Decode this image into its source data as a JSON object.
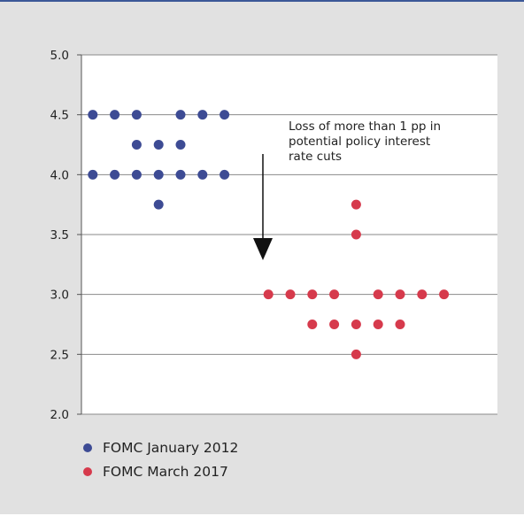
{
  "chart_data": {
    "type": "scatter",
    "title": "",
    "xlabel": "",
    "ylabel": "",
    "ylim": [
      2.0,
      5.0
    ],
    "yticks": [
      "2.0",
      "2.5",
      "3.0",
      "3.5",
      "4.0",
      "4.5",
      "5.0"
    ],
    "grid": true,
    "legend_placement": "bottom-left",
    "annotation": "Loss of more than 1 pp in potential policy interest rate cuts",
    "series": [
      {
        "name": "FOMC January 2012",
        "color": "#3d4b94",
        "points": [
          {
            "x": 1,
            "y": 4.5
          },
          {
            "x": 2,
            "y": 4.5
          },
          {
            "x": 3,
            "y": 4.5
          },
          {
            "x": 5,
            "y": 4.5
          },
          {
            "x": 6,
            "y": 4.5
          },
          {
            "x": 7,
            "y": 4.5
          },
          {
            "x": 3,
            "y": 4.25
          },
          {
            "x": 4,
            "y": 4.25
          },
          {
            "x": 5,
            "y": 4.25
          },
          {
            "x": 1,
            "y": 4.0
          },
          {
            "x": 2,
            "y": 4.0
          },
          {
            "x": 3,
            "y": 4.0
          },
          {
            "x": 4,
            "y": 4.0
          },
          {
            "x": 5,
            "y": 4.0
          },
          {
            "x": 6,
            "y": 4.0
          },
          {
            "x": 7,
            "y": 4.0
          },
          {
            "x": 4,
            "y": 3.75
          }
        ]
      },
      {
        "name": "FOMC March 2017",
        "color": "#d63a4c",
        "points": [
          {
            "x": 13,
            "y": 3.75
          },
          {
            "x": 13,
            "y": 3.5
          },
          {
            "x": 9,
            "y": 3.0
          },
          {
            "x": 10,
            "y": 3.0
          },
          {
            "x": 11,
            "y": 3.0
          },
          {
            "x": 12,
            "y": 3.0
          },
          {
            "x": 14,
            "y": 3.0
          },
          {
            "x": 15,
            "y": 3.0
          },
          {
            "x": 16,
            "y": 3.0
          },
          {
            "x": 17,
            "y": 3.0
          },
          {
            "x": 11,
            "y": 2.75
          },
          {
            "x": 12,
            "y": 2.75
          },
          {
            "x": 13,
            "y": 2.75
          },
          {
            "x": 14,
            "y": 2.75
          },
          {
            "x": 15,
            "y": 2.75
          },
          {
            "x": 13,
            "y": 2.5
          }
        ]
      }
    ]
  }
}
